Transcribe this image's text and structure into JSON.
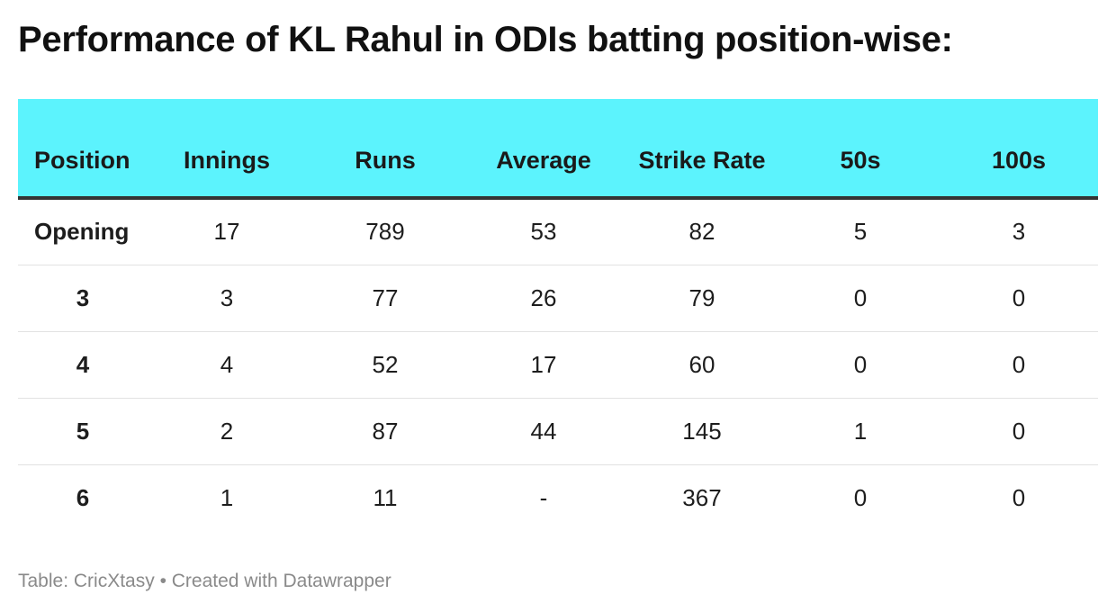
{
  "title": "Performance of KL Rahul in ODIs batting position-wise:",
  "footer": {
    "source": "Table: CricXtasy",
    "separator": "•",
    "credit": "Created with Datawrapper"
  },
  "chart_data": {
    "type": "table",
    "title": "Performance of KL Rahul in ODIs batting position-wise:",
    "columns": [
      "Position",
      "Innings",
      "Runs",
      "Average",
      "Strike Rate",
      "50s",
      "100s"
    ],
    "rows": [
      [
        "Opening",
        "17",
        "789",
        "53",
        "82",
        "5",
        "3"
      ],
      [
        "3",
        "3",
        "77",
        "26",
        "79",
        "0",
        "0"
      ],
      [
        "4",
        "4",
        "52",
        "17",
        "60",
        "0",
        "0"
      ],
      [
        "5",
        "2",
        "87",
        "44",
        "145",
        "1",
        "0"
      ],
      [
        "6",
        "1",
        "11",
        "-",
        "367",
        "0",
        "0"
      ]
    ]
  },
  "colors": {
    "header_bg": "#5cf3fd",
    "header_rule": "#333333",
    "row_rule": "#e2e2e2",
    "footer_text": "#8a8a8a"
  }
}
